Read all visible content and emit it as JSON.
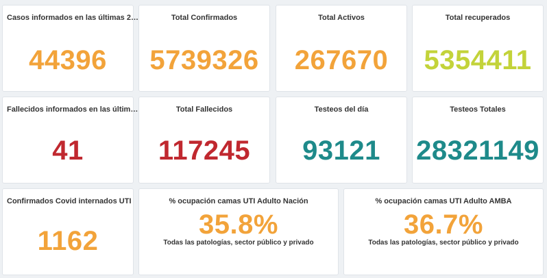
{
  "colors": {
    "orange": "#f2a33a",
    "lime": "#c3d33a",
    "red": "#c0282f",
    "teal": "#1e8a8a"
  },
  "cards": [
    {
      "title": "Casos informados en las últimas 2…",
      "value": "44396"
    },
    {
      "title": "Total Confirmados",
      "value": "5739326"
    },
    {
      "title": "Total Activos",
      "value": "267670"
    },
    {
      "title": "Total recuperados",
      "value": "5354411"
    },
    {
      "title": "Fallecidos informados en las últim…",
      "value": "41"
    },
    {
      "title": "Total Fallecidos",
      "value": "117245"
    },
    {
      "title": "Testeos del día",
      "value": "93121"
    },
    {
      "title": "Testeos Totales",
      "value": "28321149"
    },
    {
      "title": "Confirmados Covid internados UTI",
      "value": "1162"
    },
    {
      "title": "% ocupación camas UTI Adulto Nación",
      "value": "35.8%",
      "subtitle": "Todas las patologías, sector público y privado"
    },
    {
      "title": "% ocupación camas UTI Adulto AMBA",
      "value": "36.7%",
      "subtitle": "Todas las patologías, sector público y privado"
    }
  ]
}
